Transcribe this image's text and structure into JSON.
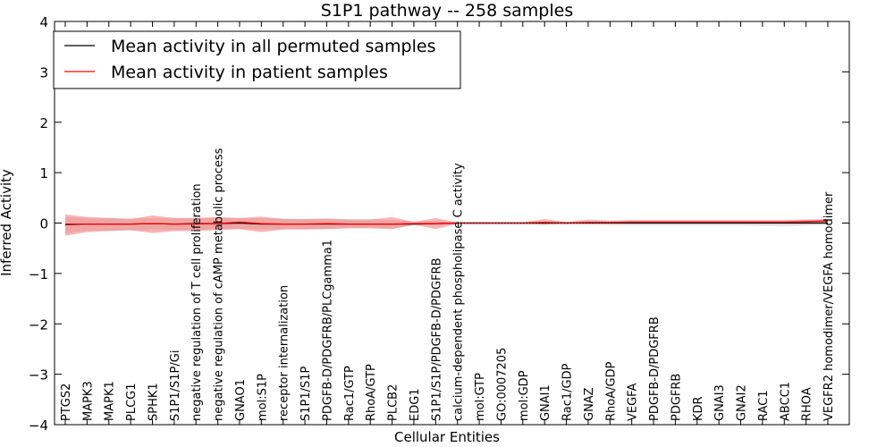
{
  "chart_data": {
    "type": "line",
    "title": "S1P1 pathway -- 258 samples",
    "xlabel": "Cellular Entities",
    "ylabel": "Inferred Activity",
    "ylim": [
      -4,
      4
    ],
    "yticks": [
      "4",
      "3",
      "2",
      "1",
      "0",
      "−1",
      "−2",
      "−3",
      "−4"
    ],
    "ytick_values": [
      4,
      3,
      2,
      1,
      0,
      -1,
      -2,
      -3,
      -4
    ],
    "legend_position": "top-left",
    "categories": [
      "PTGS2",
      "MAPK3",
      "MAPK1",
      "PLCG1",
      "SPHK1",
      "S1P1/S1P/Gi",
      "negative regulation of T cell proliferation",
      "negative regulation of cAMP metabolic process",
      "GNAO1",
      "mol:S1P",
      "receptor internalization",
      "S1P1/S1P",
      "PDGFB-D/PDGFRB/PLCgamma1",
      "Rac1/GTP",
      "RhoA/GTP",
      "PLCB2",
      "EDG1",
      "S1P1/S1P/PDGFB-D/PDGFRB",
      "calcium-dependent phospholipase C activity",
      "mol:GTP",
      "GO:0007205",
      "mol:GDP",
      "GNAI1",
      "Rac1/GDP",
      "GNAZ",
      "RhoA/GDP",
      "VEGFA",
      "PDGFB-D/PDGFRB",
      "PDGFRB",
      "KDR",
      "GNAI3",
      "GNAI2",
      "RAC1",
      "ABCC1",
      "RHOA",
      "VEGFR2 homodimer/VEGFA homodimer"
    ],
    "series": [
      {
        "name": "Mean activity in all permuted samples",
        "color": "#000000",
        "values": [
          -0.03,
          -0.02,
          -0.02,
          -0.02,
          -0.01,
          -0.02,
          -0.01,
          -0.01,
          0.0,
          -0.02,
          -0.02,
          -0.02,
          -0.02,
          -0.02,
          -0.02,
          -0.02,
          -0.02,
          -0.01,
          0.0,
          0.0,
          0.0,
          0.0,
          0.0,
          0.0,
          0.0,
          0.0,
          0.0,
          0.0,
          0.0,
          0.0,
          0.0,
          0.0,
          0.0,
          0.0,
          0.0,
          0.0
        ],
        "band_lower": [
          -0.2,
          -0.15,
          -0.15,
          -0.15,
          -0.14,
          -0.14,
          -0.14,
          -0.12,
          -0.12,
          -0.13,
          -0.12,
          -0.12,
          -0.12,
          -0.11,
          -0.11,
          -0.11,
          -0.05,
          -0.04,
          -0.04,
          -0.04,
          -0.04,
          -0.04,
          -0.04,
          -0.04,
          -0.04,
          -0.05,
          -0.05,
          -0.05,
          -0.05,
          -0.05,
          -0.05,
          -0.05,
          -0.06,
          -0.07,
          -0.05,
          -0.04
        ],
        "band_upper": [
          0.12,
          0.1,
          0.1,
          0.1,
          0.1,
          0.1,
          0.1,
          0.1,
          0.1,
          0.1,
          0.09,
          0.08,
          0.08,
          0.08,
          0.08,
          0.06,
          0.04,
          0.04,
          0.03,
          0.03,
          0.03,
          0.03,
          0.03,
          0.03,
          0.03,
          0.03,
          0.03,
          0.03,
          0.03,
          0.03,
          0.03,
          0.03,
          0.03,
          0.03,
          0.03,
          0.03
        ]
      },
      {
        "name": "Mean activity in patient samples",
        "color": "#ff0000",
        "values": [
          -0.02,
          -0.02,
          -0.02,
          -0.02,
          -0.01,
          -0.02,
          -0.02,
          -0.01,
          0.02,
          -0.01,
          -0.02,
          -0.02,
          -0.01,
          -0.02,
          -0.02,
          -0.02,
          -0.01,
          -0.01,
          0.0,
          0.0,
          0.0,
          0.0,
          0.01,
          0.0,
          0.01,
          0.01,
          0.02,
          0.02,
          0.02,
          0.02,
          0.02,
          0.02,
          0.02,
          0.02,
          0.03,
          0.04
        ],
        "band_lower": [
          -0.25,
          -0.18,
          -0.16,
          -0.14,
          -0.2,
          -0.16,
          -0.16,
          -0.14,
          -0.12,
          -0.18,
          -0.13,
          -0.13,
          -0.12,
          -0.1,
          -0.1,
          -0.12,
          -0.03,
          -0.12,
          -0.01,
          -0.01,
          -0.01,
          -0.01,
          -0.03,
          0.0,
          0.0,
          0.0,
          0.0,
          0.0,
          0.0,
          0.0,
          0.0,
          0.0,
          0.0,
          0.0,
          0.0,
          0.0
        ],
        "band_upper": [
          0.17,
          0.12,
          0.1,
          0.08,
          0.15,
          0.1,
          0.1,
          0.12,
          0.1,
          0.13,
          0.08,
          0.08,
          0.09,
          0.07,
          0.07,
          0.12,
          0.02,
          0.1,
          0.01,
          0.01,
          0.01,
          0.01,
          0.08,
          0.02,
          0.07,
          0.05,
          0.06,
          0.06,
          0.06,
          0.06,
          0.06,
          0.06,
          0.06,
          0.06,
          0.07,
          0.08
        ]
      }
    ]
  }
}
